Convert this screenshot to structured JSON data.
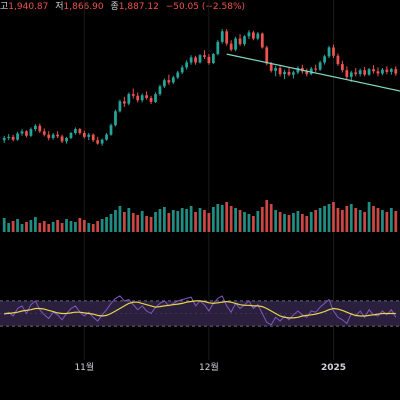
{
  "ohlc_bar": {
    "high_label": "고",
    "high": "1,940.87",
    "low_label": "저",
    "low": "1,866.90",
    "close_label": "종",
    "close": "1,887.12",
    "change": "−50.05 (−2.58%)"
  },
  "colors": {
    "up": "#26a69a",
    "down": "#ef5350",
    "trendline": "#7fd6c4",
    "rsi": "#7e57c2",
    "rsi_ma": "#e8d44d",
    "rsi_band": "#2a1f3d",
    "grid": "#1a1a1a",
    "background": "#000000"
  },
  "chart_data": [
    {
      "type": "candlestick",
      "title": "",
      "ylim": [
        1440,
        1980
      ],
      "x_ticks": [
        {
          "label": "11월",
          "index": 18
        },
        {
          "label": "12월",
          "index": 46
        },
        {
          "label": "2025",
          "index": 74,
          "bold": true
        }
      ],
      "ohlc": [
        [
          1540,
          1556,
          1530,
          1548
        ],
        [
          1548,
          1562,
          1540,
          1552
        ],
        [
          1552,
          1560,
          1536,
          1542
        ],
        [
          1542,
          1570,
          1538,
          1564
        ],
        [
          1564,
          1580,
          1556,
          1572
        ],
        [
          1572,
          1576,
          1550,
          1556
        ],
        [
          1556,
          1586,
          1552,
          1580
        ],
        [
          1580,
          1598,
          1572,
          1592
        ],
        [
          1592,
          1600,
          1566,
          1572
        ],
        [
          1572,
          1582,
          1554,
          1560
        ],
        [
          1560,
          1572,
          1540,
          1548
        ],
        [
          1548,
          1566,
          1542,
          1560
        ],
        [
          1560,
          1572,
          1548,
          1554
        ],
        [
          1554,
          1560,
          1530,
          1536
        ],
        [
          1536,
          1552,
          1528,
          1548
        ],
        [
          1548,
          1570,
          1544,
          1566
        ],
        [
          1566,
          1586,
          1560,
          1580
        ],
        [
          1580,
          1584,
          1560,
          1566
        ],
        [
          1566,
          1574,
          1546,
          1552
        ],
        [
          1552,
          1566,
          1540,
          1560
        ],
        [
          1560,
          1564,
          1534,
          1540
        ],
        [
          1540,
          1552,
          1524,
          1528
        ],
        [
          1528,
          1546,
          1520,
          1542
        ],
        [
          1542,
          1566,
          1538,
          1560
        ],
        [
          1560,
          1600,
          1556,
          1594
        ],
        [
          1594,
          1650,
          1590,
          1644
        ],
        [
          1644,
          1686,
          1640,
          1680
        ],
        [
          1680,
          1696,
          1660,
          1672
        ],
        [
          1672,
          1712,
          1666,
          1706
        ],
        [
          1706,
          1726,
          1690,
          1700
        ],
        [
          1700,
          1712,
          1676,
          1684
        ],
        [
          1684,
          1708,
          1676,
          1702
        ],
        [
          1702,
          1716,
          1686,
          1692
        ],
        [
          1692,
          1700,
          1670,
          1678
        ],
        [
          1678,
          1712,
          1674,
          1706
        ],
        [
          1706,
          1740,
          1700,
          1734
        ],
        [
          1734,
          1762,
          1728,
          1756
        ],
        [
          1756,
          1776,
          1740,
          1748
        ],
        [
          1748,
          1772,
          1742,
          1766
        ],
        [
          1766,
          1790,
          1760,
          1784
        ],
        [
          1784,
          1810,
          1778,
          1802
        ],
        [
          1802,
          1828,
          1794,
          1820
        ],
        [
          1820,
          1846,
          1812,
          1838
        ],
        [
          1838,
          1844,
          1812,
          1820
        ],
        [
          1820,
          1850,
          1816,
          1846
        ],
        [
          1846,
          1864,
          1832,
          1840
        ],
        [
          1840,
          1850,
          1812,
          1818
        ],
        [
          1818,
          1854,
          1814,
          1850
        ],
        [
          1850,
          1900,
          1846,
          1894
        ],
        [
          1894,
          1940,
          1888,
          1932
        ],
        [
          1932,
          1940,
          1880,
          1888
        ],
        [
          1888,
          1900,
          1860,
          1866
        ],
        [
          1866,
          1912,
          1860,
          1906
        ],
        [
          1906,
          1922,
          1880,
          1886
        ],
        [
          1886,
          1918,
          1880,
          1914
        ],
        [
          1914,
          1936,
          1904,
          1928
        ],
        [
          1928,
          1934,
          1900,
          1906
        ],
        [
          1906,
          1930,
          1900,
          1924
        ],
        [
          1924,
          1928,
          1870,
          1874
        ],
        [
          1874,
          1880,
          1810,
          1816
        ],
        [
          1816,
          1822,
          1784,
          1790
        ],
        [
          1790,
          1808,
          1770,
          1800
        ],
        [
          1800,
          1812,
          1770,
          1778
        ],
        [
          1778,
          1794,
          1760,
          1786
        ],
        [
          1786,
          1800,
          1770,
          1776
        ],
        [
          1776,
          1790,
          1762,
          1784
        ],
        [
          1784,
          1806,
          1778,
          1800
        ],
        [
          1800,
          1812,
          1780,
          1788
        ],
        [
          1788,
          1798,
          1770,
          1778
        ],
        [
          1778,
          1804,
          1774,
          1798
        ],
        [
          1798,
          1812,
          1786,
          1794
        ],
        [
          1794,
          1826,
          1790,
          1820
        ],
        [
          1820,
          1848,
          1812,
          1842
        ],
        [
          1842,
          1880,
          1836,
          1874
        ],
        [
          1874,
          1884,
          1836,
          1844
        ],
        [
          1844,
          1852,
          1808,
          1814
        ],
        [
          1814,
          1826,
          1784,
          1792
        ],
        [
          1792,
          1806,
          1760,
          1768
        ],
        [
          1768,
          1790,
          1750,
          1784
        ],
        [
          1784,
          1800,
          1770,
          1778
        ],
        [
          1778,
          1798,
          1770,
          1792
        ],
        [
          1792,
          1804,
          1770,
          1776
        ],
        [
          1776,
          1800,
          1772,
          1796
        ],
        [
          1796,
          1810,
          1780,
          1788
        ],
        [
          1788,
          1802,
          1770,
          1780
        ],
        [
          1780,
          1800,
          1774,
          1794
        ],
        [
          1794,
          1806,
          1778,
          1786
        ],
        [
          1786,
          1800,
          1776,
          1796
        ],
        [
          1796,
          1806,
          1772,
          1780
        ]
      ],
      "volume": [
        14,
        9,
        11,
        13,
        8,
        10,
        12,
        15,
        9,
        11,
        8,
        10,
        12,
        9,
        13,
        11,
        10,
        14,
        12,
        9,
        8,
        11,
        13,
        15,
        18,
        22,
        26,
        20,
        24,
        19,
        17,
        21,
        16,
        15,
        20,
        23,
        25,
        19,
        22,
        21,
        24,
        23,
        26,
        20,
        24,
        22,
        19,
        25,
        28,
        27,
        30,
        26,
        24,
        22,
        20,
        18,
        16,
        21,
        25,
        32,
        28,
        22,
        20,
        18,
        17,
        19,
        21,
        18,
        16,
        20,
        22,
        24,
        26,
        28,
        30,
        24,
        22,
        26,
        28,
        24,
        22,
        20,
        30,
        26,
        24,
        22,
        20,
        24,
        21
      ],
      "trendline": [
        {
          "index": 50,
          "value": 1850
        },
        {
          "index": 94,
          "value": 1700
        }
      ]
    },
    {
      "type": "line",
      "title": "",
      "ylim": [
        0,
        100
      ],
      "bands": [
        30,
        70
      ],
      "series": [
        {
          "role": "rsi",
          "values": [
            48,
            52,
            46,
            58,
            62,
            50,
            64,
            70,
            56,
            48,
            42,
            52,
            48,
            40,
            50,
            58,
            62,
            52,
            46,
            52,
            44,
            38,
            48,
            56,
            66,
            74,
            78,
            70,
            72,
            64,
            56,
            62,
            54,
            50,
            60,
            66,
            70,
            62,
            66,
            70,
            72,
            74,
            76,
            62,
            70,
            64,
            54,
            66,
            74,
            78,
            62,
            52,
            66,
            58,
            64,
            70,
            58,
            64,
            50,
            36,
            32,
            44,
            38,
            46,
            40,
            48,
            54,
            48,
            44,
            54,
            52,
            60,
            66,
            72,
            54,
            44,
            40,
            34,
            50,
            46,
            54,
            44,
            56,
            48,
            46,
            54,
            48,
            56,
            44
          ]
        },
        {
          "role": "rsi_ma",
          "values": [
            50,
            50,
            51,
            52,
            54,
            55,
            56,
            58,
            58,
            57,
            55,
            53,
            51,
            50,
            50,
            51,
            52,
            52,
            51,
            50,
            49,
            47,
            46,
            47,
            50,
            54,
            58,
            62,
            66,
            68,
            68,
            66,
            64,
            62,
            60,
            61,
            62,
            63,
            64,
            65,
            66,
            68,
            69,
            70,
            70,
            69,
            67,
            66,
            67,
            68,
            69,
            68,
            66,
            64,
            63,
            63,
            62,
            62,
            61,
            58,
            54,
            50,
            46,
            44,
            43,
            43,
            44,
            46,
            47,
            48,
            49,
            51,
            53,
            56,
            58,
            57,
            55,
            52,
            49,
            47,
            46,
            46,
            47,
            48,
            49,
            50,
            50,
            50,
            50
          ]
        }
      ]
    }
  ]
}
